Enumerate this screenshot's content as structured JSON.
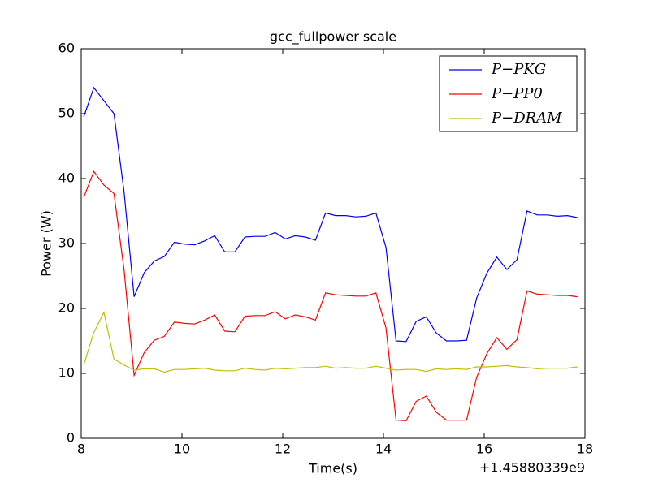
{
  "chart_data": {
    "type": "line",
    "title": "gcc_fullpower scale",
    "x_label": "Time(s)",
    "y_label": "Power (W)",
    "x_offset": "+1.45880339e9",
    "x": [
      8.05,
      8.25,
      8.45,
      8.65,
      8.85,
      9.05,
      9.25,
      9.45,
      9.65,
      9.85,
      10.05,
      10.25,
      10.45,
      10.65,
      10.85,
      11.05,
      11.25,
      11.45,
      11.65,
      11.85,
      12.05,
      12.25,
      12.45,
      12.65,
      12.85,
      13.05,
      13.25,
      13.45,
      13.65,
      13.85,
      14.05,
      14.25,
      14.45,
      14.65,
      14.85,
      15.05,
      15.25,
      15.45,
      15.65,
      15.85,
      16.05,
      16.25,
      16.45,
      16.65,
      16.85,
      17.05,
      17.25,
      17.45,
      17.65,
      17.85
    ],
    "series": [
      {
        "name": "P−PKG",
        "color": "#0000ff",
        "values": [
          49.5,
          54,
          52,
          50,
          38,
          21.8,
          25.5,
          27.3,
          28,
          30.2,
          29.9,
          29.8,
          30.4,
          31.2,
          28.7,
          28.7,
          31,
          31.1,
          31.1,
          31.7,
          30.7,
          31.2,
          31,
          30.5,
          34.7,
          34.3,
          34.3,
          34.1,
          34.2,
          34.7,
          29.4,
          15,
          14.9,
          18,
          18.7,
          16.2,
          15,
          15,
          15.1,
          21.6,
          25.4,
          27.9,
          26,
          27.5,
          35,
          34.4,
          34.4,
          34.2,
          34.3,
          34
        ]
      },
      {
        "name": "P−PP0",
        "color": "#ff0000",
        "values": [
          37.1,
          41.1,
          39,
          37.7,
          26,
          9.7,
          13.2,
          15.1,
          15.7,
          17.9,
          17.7,
          17.6,
          18.2,
          19,
          16.5,
          16.4,
          18.8,
          18.9,
          18.9,
          19.5,
          18.4,
          19,
          18.7,
          18.2,
          22.4,
          22.1,
          22,
          21.9,
          21.9,
          22.4,
          17,
          2.8,
          2.7,
          5.7,
          6.5,
          4,
          2.8,
          2.8,
          2.8,
          9.4,
          13,
          15.5,
          13.7,
          15.2,
          22.7,
          22.2,
          22.1,
          22,
          22,
          21.8
        ]
      },
      {
        "name": "P−DRAM",
        "color": "#bfbf00",
        "values": [
          11.3,
          16.3,
          19.4,
          12.2,
          11.3,
          10.5,
          10.7,
          10.7,
          10.2,
          10.6,
          10.6,
          10.7,
          10.8,
          10.5,
          10.4,
          10.4,
          10.8,
          10.6,
          10.5,
          10.8,
          10.7,
          10.8,
          10.9,
          10.9,
          11.1,
          10.8,
          10.9,
          10.8,
          10.8,
          11.1,
          10.8,
          10.5,
          10.6,
          10.6,
          10.3,
          10.7,
          10.6,
          10.7,
          10.6,
          11,
          11,
          11.1,
          11.2,
          11,
          10.9,
          10.7,
          10.8,
          10.8,
          10.8,
          11
        ]
      }
    ],
    "xlim": [
      8,
      18
    ],
    "xticks": [
      8,
      10,
      12,
      14,
      16,
      18
    ],
    "ylim": [
      0,
      60
    ],
    "yticks": [
      0,
      10,
      20,
      30,
      40,
      50,
      60
    ],
    "grid": false,
    "legend": "upper right"
  }
}
